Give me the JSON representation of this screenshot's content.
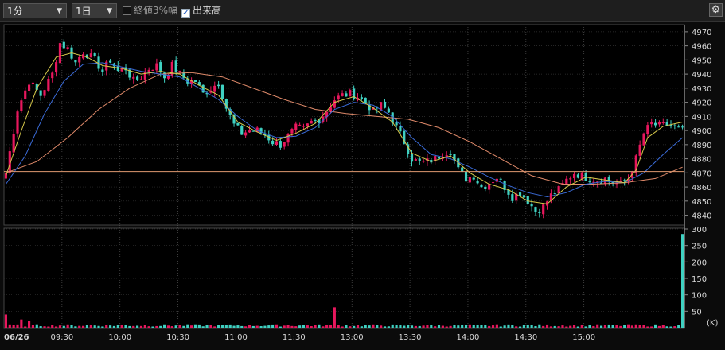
{
  "toolbar": {
    "interval": "1分",
    "period": "1日",
    "percent_option": "終値3%幅",
    "percent_checked": false,
    "volume_option": "出来高",
    "volume_checked": true,
    "settings_icon": "gear-icon"
  },
  "colors": {
    "up": "#e8175d",
    "down": "#3fd1c2",
    "ma_short": "#d6c84a",
    "ma_mid": "#3a6bd8",
    "ma_long": "#e08a6a",
    "hline": "#e09a70"
  },
  "chart_data": [
    {
      "type": "candlestick",
      "title": "",
      "date_label": "06/26",
      "x_ticks": [
        "09:30",
        "10:00",
        "10:30",
        "11:00",
        "11:30",
        "13:00",
        "13:30",
        "14:00",
        "14:30",
        "15:00"
      ],
      "y_ticks": [
        4840,
        4850,
        4860,
        4870,
        4880,
        4890,
        4900,
        4910,
        4920,
        4930,
        4940,
        4950,
        4960,
        4970
      ],
      "ylim": [
        4833,
        4975
      ],
      "horizontal_line": 4871,
      "close_path": [
        [
          0,
          4870
        ],
        [
          3,
          4915
        ],
        [
          6,
          4935
        ],
        [
          9,
          4925
        ],
        [
          12,
          4940
        ],
        [
          14,
          4962
        ],
        [
          16,
          4958
        ],
        [
          18,
          4948
        ],
        [
          20,
          4956
        ],
        [
          23,
          4950
        ],
        [
          25,
          4942
        ],
        [
          27,
          4950
        ],
        [
          29,
          4942
        ],
        [
          31,
          4944
        ],
        [
          33,
          4935
        ],
        [
          35,
          4938
        ],
        [
          37,
          4944
        ],
        [
          39,
          4946
        ],
        [
          41,
          4938
        ],
        [
          43,
          4946
        ],
        [
          45,
          4940
        ],
        [
          47,
          4935
        ],
        [
          49,
          4935
        ],
        [
          51,
          4926
        ],
        [
          53,
          4930
        ],
        [
          55,
          4934
        ],
        [
          57,
          4916
        ],
        [
          59,
          4904
        ],
        [
          61,
          4898
        ],
        [
          63,
          4900
        ],
        [
          65,
          4900
        ],
        [
          67,
          4897
        ],
        [
          69,
          4892
        ],
        [
          71,
          4890
        ],
        [
          73,
          4896
        ],
        [
          75,
          4902
        ],
        [
          77,
          4901
        ],
        [
          79,
          4906
        ],
        [
          81,
          4908
        ],
        [
          83,
          4914
        ],
        [
          85,
          4922
        ],
        [
          87,
          4925
        ],
        [
          89,
          4926
        ],
        [
          91,
          4924
        ],
        [
          93,
          4920
        ],
        [
          95,
          4914
        ],
        [
          97,
          4918
        ],
        [
          99,
          4913
        ],
        [
          101,
          4902
        ],
        [
          103,
          4892
        ],
        [
          105,
          4880
        ],
        [
          107,
          4877
        ],
        [
          109,
          4878
        ],
        [
          111,
          4880
        ],
        [
          113,
          4884
        ],
        [
          115,
          4886
        ],
        [
          117,
          4872
        ],
        [
          119,
          4866
        ],
        [
          121,
          4868
        ],
        [
          123,
          4860
        ],
        [
          125,
          4863
        ],
        [
          127,
          4867
        ],
        [
          129,
          4860
        ],
        [
          131,
          4853
        ],
        [
          133,
          4856
        ],
        [
          135,
          4850
        ],
        [
          137,
          4843
        ],
        [
          139,
          4846
        ],
        [
          141,
          4854
        ],
        [
          143,
          4858
        ],
        [
          145,
          4865
        ],
        [
          147,
          4870
        ],
        [
          149,
          4868
        ],
        [
          151,
          4866
        ],
        [
          153,
          4865
        ],
        [
          155,
          4866
        ],
        [
          157,
          4863
        ],
        [
          159,
          4862
        ],
        [
          161,
          4866
        ],
        [
          163,
          4880
        ],
        [
          165,
          4898
        ],
        [
          167,
          4905
        ],
        [
          169,
          4903
        ],
        [
          171,
          4904
        ],
        [
          173,
          4902
        ],
        [
          175,
          4900
        ]
      ],
      "sma_short_path": [
        [
          0,
          4868
        ],
        [
          4,
          4900
        ],
        [
          8,
          4930
        ],
        [
          13,
          4952
        ],
        [
          17,
          4955
        ],
        [
          21,
          4952
        ],
        [
          25,
          4946
        ],
        [
          30,
          4944
        ],
        [
          35,
          4940
        ],
        [
          40,
          4942
        ],
        [
          45,
          4940
        ],
        [
          50,
          4932
        ],
        [
          55,
          4925
        ],
        [
          60,
          4906
        ],
        [
          65,
          4899
        ],
        [
          70,
          4893
        ],
        [
          75,
          4898
        ],
        [
          80,
          4905
        ],
        [
          85,
          4920
        ],
        [
          90,
          4924
        ],
        [
          95,
          4916
        ],
        [
          100,
          4906
        ],
        [
          105,
          4884
        ],
        [
          110,
          4878
        ],
        [
          115,
          4882
        ],
        [
          120,
          4870
        ],
        [
          125,
          4862
        ],
        [
          130,
          4858
        ],
        [
          135,
          4850
        ],
        [
          140,
          4848
        ],
        [
          145,
          4860
        ],
        [
          150,
          4867
        ],
        [
          155,
          4865
        ],
        [
          160,
          4863
        ],
        [
          163,
          4872
        ],
        [
          166,
          4895
        ],
        [
          170,
          4903
        ],
        [
          175,
          4906
        ]
      ],
      "sma_mid_path": [
        [
          0,
          4862
        ],
        [
          5,
          4882
        ],
        [
          10,
          4912
        ],
        [
          15,
          4935
        ],
        [
          20,
          4947
        ],
        [
          25,
          4948
        ],
        [
          30,
          4945
        ],
        [
          35,
          4942
        ],
        [
          40,
          4940
        ],
        [
          45,
          4938
        ],
        [
          50,
          4930
        ],
        [
          55,
          4922
        ],
        [
          60,
          4910
        ],
        [
          65,
          4900
        ],
        [
          70,
          4895
        ],
        [
          75,
          4896
        ],
        [
          80,
          4902
        ],
        [
          85,
          4915
        ],
        [
          90,
          4920
        ],
        [
          95,
          4918
        ],
        [
          100,
          4910
        ],
        [
          105,
          4895
        ],
        [
          110,
          4883
        ],
        [
          115,
          4880
        ],
        [
          120,
          4874
        ],
        [
          125,
          4867
        ],
        [
          130,
          4861
        ],
        [
          135,
          4856
        ],
        [
          140,
          4853
        ],
        [
          145,
          4856
        ],
        [
          150,
          4862
        ],
        [
          155,
          4864
        ],
        [
          160,
          4863
        ],
        [
          165,
          4870
        ],
        [
          170,
          4883
        ],
        [
          175,
          4895
        ]
      ],
      "sma_long_path": [
        [
          0,
          4870
        ],
        [
          8,
          4878
        ],
        [
          16,
          4895
        ],
        [
          24,
          4915
        ],
        [
          32,
          4930
        ],
        [
          40,
          4940
        ],
        [
          48,
          4941
        ],
        [
          56,
          4938
        ],
        [
          64,
          4930
        ],
        [
          72,
          4922
        ],
        [
          80,
          4915
        ],
        [
          88,
          4912
        ],
        [
          96,
          4910
        ],
        [
          104,
          4908
        ],
        [
          112,
          4902
        ],
        [
          120,
          4892
        ],
        [
          128,
          4880
        ],
        [
          136,
          4868
        ],
        [
          144,
          4862
        ],
        [
          152,
          4862
        ],
        [
          160,
          4863
        ],
        [
          168,
          4866
        ],
        [
          175,
          4874
        ]
      ]
    },
    {
      "type": "bar",
      "title": "",
      "unit": "(K)",
      "y_ticks": [
        50,
        100,
        150,
        200,
        250,
        300
      ],
      "ylim": [
        0,
        300
      ],
      "baseline_volume": 7,
      "spikes": [
        [
          0,
          40
        ],
        [
          4,
          25
        ],
        [
          6,
          20
        ],
        [
          85,
          62
        ],
        [
          175,
          285
        ]
      ]
    }
  ]
}
